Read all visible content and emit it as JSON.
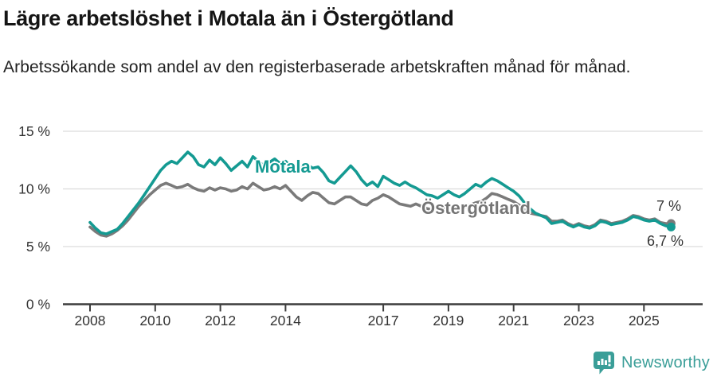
{
  "header": {
    "title": "Lägre arbetslöshet i Motala än i Östergötland",
    "subtitle": "Arbetssökande som andel av den registerbaserade arbetskraften månad för månad."
  },
  "footer": {
    "brand": "Newsworthy",
    "logo_icon": "newsworthy-chart-bubble-icon",
    "brand_color": "#3a9e98"
  },
  "chart_data": {
    "type": "line",
    "x_start_year": 2008,
    "x_step_months": 2,
    "x_end_year": 2025.83,
    "ylim": [
      0,
      15
    ],
    "grid": "horizontal",
    "legend_position": "inline-labels",
    "yticks": [
      {
        "value": 0,
        "label": "0 %"
      },
      {
        "value": 5,
        "label": "5 %"
      },
      {
        "value": 10,
        "label": "10 %"
      },
      {
        "value": 15,
        "label": "15 %"
      }
    ],
    "xticks": [
      {
        "value": 2008,
        "label": "2008"
      },
      {
        "value": 2010,
        "label": "2010"
      },
      {
        "value": 2012,
        "label": "2012"
      },
      {
        "value": 2014,
        "label": "2014"
      },
      {
        "value": 2017,
        "label": "2017"
      },
      {
        "value": 2019,
        "label": "2019"
      },
      {
        "value": 2021,
        "label": "2021"
      },
      {
        "value": 2023,
        "label": "2023"
      },
      {
        "value": 2025,
        "label": "2025"
      }
    ],
    "series": [
      {
        "name": "Östergötland",
        "color": "#7a7a7a",
        "end_label": "7 %",
        "end_value": 7.0,
        "values": [
          6.7,
          6.3,
          6.0,
          5.9,
          6.1,
          6.4,
          6.8,
          7.3,
          7.9,
          8.5,
          9.0,
          9.5,
          9.9,
          10.3,
          10.5,
          10.3,
          10.1,
          10.2,
          10.4,
          10.1,
          9.9,
          9.8,
          10.1,
          9.9,
          10.1,
          10.0,
          9.8,
          9.9,
          10.2,
          10.0,
          10.5,
          10.2,
          9.9,
          10.0,
          10.2,
          10.0,
          10.3,
          9.8,
          9.3,
          9.0,
          9.4,
          9.7,
          9.6,
          9.2,
          8.8,
          8.7,
          9.0,
          9.3,
          9.3,
          9.0,
          8.7,
          8.6,
          9.0,
          9.2,
          9.5,
          9.3,
          9.0,
          8.7,
          8.6,
          8.5,
          8.7,
          8.5,
          8.3,
          8.2,
          8.4,
          8.3,
          8.5,
          8.3,
          8.2,
          8.4,
          8.6,
          8.8,
          8.9,
          9.2,
          9.6,
          9.5,
          9.3,
          9.1,
          8.9,
          8.6,
          8.2,
          7.9,
          7.8,
          7.7,
          7.6,
          7.2,
          7.2,
          7.3,
          7.0,
          6.8,
          7.0,
          6.8,
          6.7,
          6.9,
          7.3,
          7.2,
          7.0,
          7.1,
          7.2,
          7.4,
          7.7,
          7.6,
          7.4,
          7.3,
          7.4,
          7.1,
          7.0,
          7.0
        ]
      },
      {
        "name": "Motala",
        "color": "#149a92",
        "end_label": "6,7 %",
        "end_value": 6.7,
        "values": [
          7.1,
          6.6,
          6.2,
          6.1,
          6.3,
          6.5,
          7.0,
          7.6,
          8.2,
          8.8,
          9.5,
          10.2,
          10.9,
          11.6,
          12.1,
          12.4,
          12.2,
          12.7,
          13.2,
          12.8,
          12.1,
          11.9,
          12.5,
          12.1,
          12.7,
          12.2,
          11.6,
          12.0,
          12.4,
          11.9,
          12.8,
          12.4,
          12.0,
          12.3,
          12.6,
          12.2,
          12.4,
          11.9,
          11.6,
          11.9,
          12.1,
          11.8,
          11.9,
          11.4,
          10.7,
          10.5,
          11.0,
          11.5,
          12.0,
          11.5,
          10.8,
          10.3,
          10.6,
          10.2,
          11.1,
          10.8,
          10.5,
          10.3,
          10.6,
          10.3,
          10.1,
          9.8,
          9.5,
          9.4,
          9.2,
          9.5,
          9.8,
          9.5,
          9.3,
          9.6,
          10.0,
          10.4,
          10.2,
          10.6,
          10.9,
          10.7,
          10.4,
          10.1,
          9.8,
          9.4,
          8.8,
          8.3,
          7.9,
          7.7,
          7.5,
          7.0,
          7.1,
          7.2,
          6.9,
          6.7,
          6.9,
          6.7,
          6.6,
          6.8,
          7.2,
          7.1,
          6.9,
          7.0,
          7.1,
          7.3,
          7.6,
          7.5,
          7.3,
          7.2,
          7.3,
          7.0,
          6.8,
          6.7
        ]
      }
    ]
  }
}
